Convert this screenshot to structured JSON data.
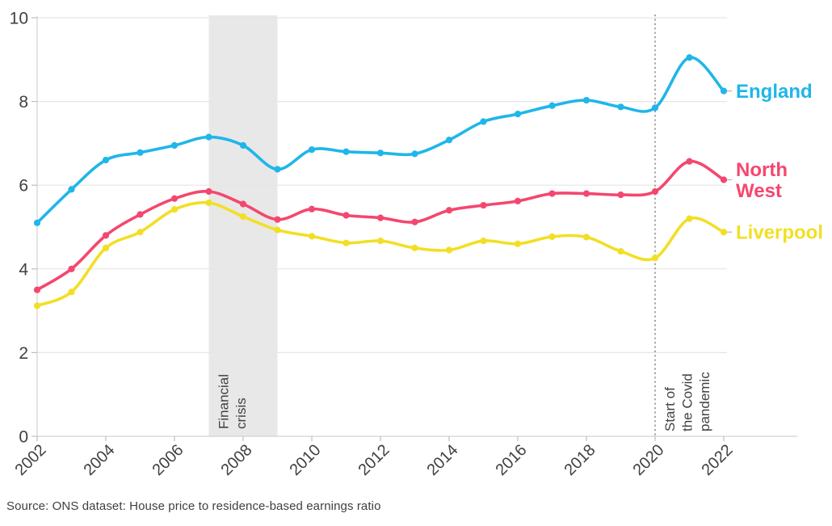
{
  "chart_data": {
    "type": "line",
    "title": "",
    "xlabel": "",
    "ylabel": "",
    "x": [
      2002,
      2003,
      2004,
      2005,
      2006,
      2007,
      2008,
      2009,
      2010,
      2011,
      2012,
      2013,
      2014,
      2015,
      2016,
      2017,
      2018,
      2019,
      2020,
      2021,
      2022
    ],
    "xticks": [
      2002,
      2004,
      2006,
      2008,
      2010,
      2012,
      2014,
      2016,
      2018,
      2020,
      2022
    ],
    "yticks": [
      0,
      2,
      4,
      6,
      8,
      10
    ],
    "ylim": [
      0,
      10
    ],
    "xlim": [
      2002,
      2022
    ],
    "grid": true,
    "legend_position": "labels-at-line-ends-right",
    "series": [
      {
        "name": "England",
        "label_lines": [
          "England"
        ],
        "color": "#1fb6e9",
        "values": [
          5.1,
          5.9,
          6.6,
          6.78,
          6.95,
          7.15,
          6.95,
          6.38,
          6.85,
          6.8,
          6.77,
          6.75,
          7.08,
          7.52,
          7.7,
          7.9,
          8.03,
          7.87,
          7.85,
          9.05,
          8.25
        ]
      },
      {
        "name": "North West",
        "label_lines": [
          "North",
          "West"
        ],
        "color": "#f4476f",
        "values": [
          3.5,
          4.0,
          4.8,
          5.3,
          5.68,
          5.85,
          5.55,
          5.18,
          5.43,
          5.28,
          5.22,
          5.12,
          5.4,
          5.52,
          5.62,
          5.8,
          5.8,
          5.77,
          5.85,
          6.57,
          6.13
        ]
      },
      {
        "name": "Liverpool",
        "label_lines": [
          "Liverpool"
        ],
        "color": "#f2df25",
        "values": [
          3.12,
          3.45,
          4.5,
          4.88,
          5.42,
          5.58,
          5.25,
          4.93,
          4.78,
          4.62,
          4.67,
          4.5,
          4.45,
          4.67,
          4.6,
          4.77,
          4.76,
          4.42,
          4.26,
          5.2,
          4.88
        ]
      }
    ],
    "annotations": {
      "band": {
        "x_from": 2007,
        "x_to": 2009,
        "label_lines": [
          "Financial",
          "crisis"
        ],
        "fill": "#e8e8e8"
      },
      "vline": {
        "x": 2020,
        "style": "dotted",
        "color": "#8f8f8f",
        "label_lines": [
          "Start of",
          "the Covid",
          "pandemic"
        ]
      }
    },
    "axis_text_color": "#414042",
    "gridline_color": "#e6e6e6",
    "axis_line_color": "#d2d2d2"
  },
  "footer": {
    "source_text": "Source: ONS dataset: House price to residence-based earnings ratio"
  }
}
